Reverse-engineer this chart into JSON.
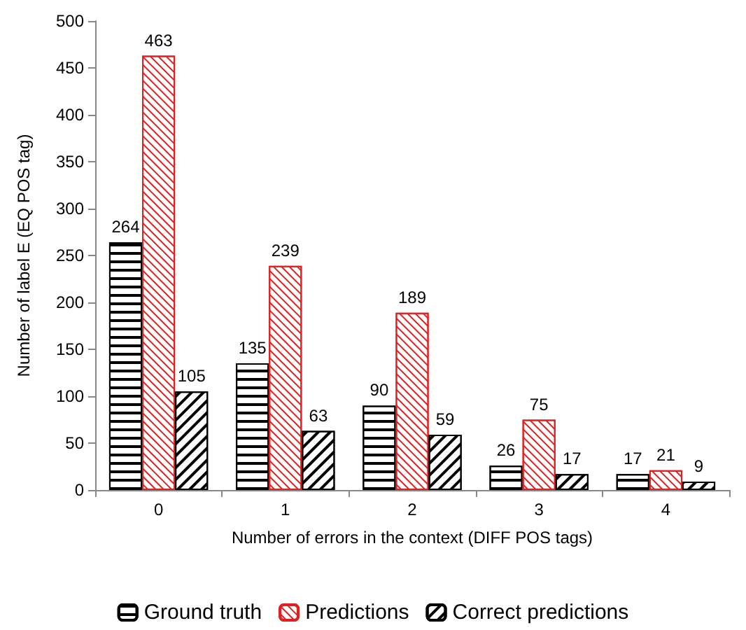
{
  "chart_data": {
    "type": "bar",
    "xlabel": "Number of errors in the context (DIFF POS tags)",
    "ylabel": "Number of label E (EQ POS tag)",
    "categories": [
      "0",
      "1",
      "2",
      "3",
      "4"
    ],
    "series": [
      {
        "name": "Ground truth",
        "color": "#000000",
        "values": [
          264,
          135,
          90,
          26,
          17
        ]
      },
      {
        "name": "Predictions",
        "color": "#e02020",
        "values": [
          463,
          239,
          189,
          75,
          21
        ]
      },
      {
        "name": "Correct predictions",
        "color": "#000000",
        "values": [
          105,
          63,
          59,
          17,
          9
        ]
      }
    ],
    "ylim": [
      0,
      500
    ],
    "yticks": [
      0,
      50,
      100,
      150,
      200,
      250,
      300,
      350,
      400,
      450,
      500
    ],
    "grid": false,
    "legend": "bottom",
    "data_labels": true
  }
}
